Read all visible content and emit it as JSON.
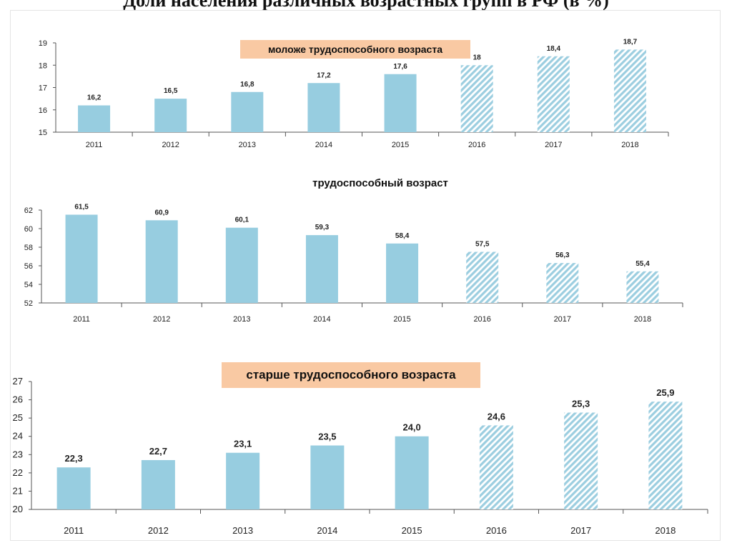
{
  "page": {
    "title": "Доли населения различных возрастных групп в РФ (в %)"
  },
  "colors": {
    "bar": "#97cde0",
    "hatch": "#9ccee0",
    "banner": "#f9c9a3",
    "axis": "#555555"
  },
  "chart_data": [
    {
      "id": "younger",
      "type": "bar",
      "title": "моложе трудоспособного возраста",
      "title_style": "banner",
      "categories": [
        "2011",
        "2012",
        "2013",
        "2014",
        "2015",
        "2016",
        "2017",
        "2018"
      ],
      "values": [
        16.2,
        16.5,
        16.8,
        17.2,
        17.6,
        18.0,
        18.4,
        18.7
      ],
      "value_labels": [
        "16,2",
        "16,5",
        "16,8",
        "17,2",
        "17,6",
        "18",
        "18,4",
        "18,7"
      ],
      "forecast_from_index": 5,
      "ylim": [
        15,
        19
      ],
      "yticks": [
        15,
        16,
        17,
        18,
        19
      ],
      "xlabel": "",
      "ylabel": ""
    },
    {
      "id": "working",
      "type": "bar",
      "title": "трудоспособный возраст",
      "title_style": "plain",
      "categories": [
        "2011",
        "2012",
        "2013",
        "2014",
        "2015",
        "2016",
        "2017",
        "2018"
      ],
      "values": [
        61.5,
        60.9,
        60.1,
        59.3,
        58.4,
        57.5,
        56.3,
        55.4
      ],
      "value_labels": [
        "61,5",
        "60,9",
        "60,1",
        "59,3",
        "58,4",
        "57,5",
        "56,3",
        "55,4"
      ],
      "forecast_from_index": 5,
      "ylim": [
        52,
        62
      ],
      "yticks": [
        52,
        54,
        56,
        58,
        60,
        62
      ],
      "xlabel": "",
      "ylabel": ""
    },
    {
      "id": "older",
      "type": "bar",
      "title": "старше трудоспособного возраста",
      "title_style": "banner",
      "categories": [
        "2011",
        "2012",
        "2013",
        "2014",
        "2015",
        "2016",
        "2017",
        "2018"
      ],
      "values": [
        22.3,
        22.7,
        23.1,
        23.5,
        24.0,
        24.6,
        25.3,
        25.9
      ],
      "value_labels": [
        "22,3",
        "22,7",
        "23,1",
        "23,5",
        "24,0",
        "24,6",
        "25,3",
        "25,9"
      ],
      "forecast_from_index": 5,
      "ylim": [
        20,
        27
      ],
      "yticks": [
        20,
        21,
        22,
        23,
        24,
        25,
        26,
        27
      ],
      "xlabel": "",
      "ylabel": ""
    }
  ]
}
